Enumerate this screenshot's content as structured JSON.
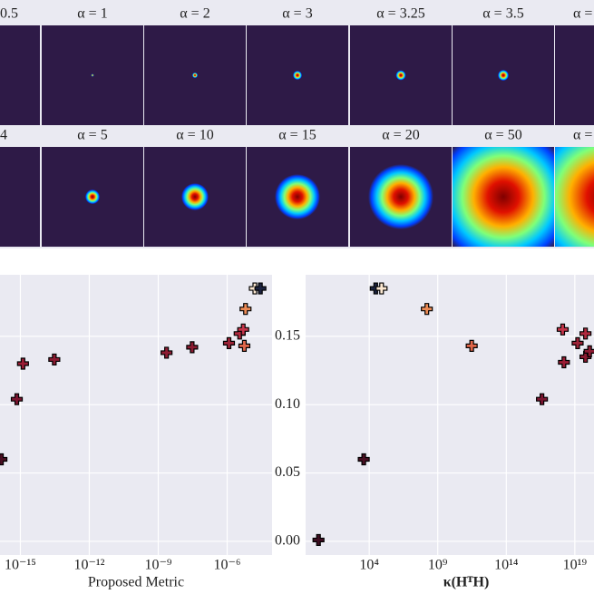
{
  "image_panels": {
    "rows": [
      [
        "0.5",
        "α = 1",
        "α = 2",
        "α = 3",
        "α = 3.25",
        "α = 3.5",
        "α ="
      ],
      [
        "4",
        "α = 5",
        "α = 10",
        "α = 15",
        "α = 20",
        "α = 50",
        "α ="
      ]
    ]
  },
  "chart_data": [
    {
      "type": "scatter",
      "xlabel": "Proposed Metric",
      "xlog": true,
      "grid": true,
      "ytick_labels": false,
      "xlim": [
        1.3e-16,
        9e-05
      ],
      "ylim": [
        -0.01,
        0.195
      ],
      "xticks": [
        {
          "value": 1e-15,
          "label": "10⁻¹⁵"
        },
        {
          "value": 1e-12,
          "label": "10⁻¹²"
        },
        {
          "value": 1e-09,
          "label": "10⁻⁹"
        },
        {
          "value": 1e-06,
          "label": "10⁻⁶"
        }
      ],
      "yticks": [
        0,
        0.05,
        0.1,
        0.15
      ],
      "x": [
        1.5e-16,
        7e-16,
        1.3e-15,
        3e-14,
        2.3e-09,
        3e-08,
        1.2e-06,
        3.5e-06,
        5e-06,
        5.6e-06,
        6.3e-06,
        1.6e-05,
        2.8e-05
      ],
      "values": [
        0.06,
        0.104,
        0.13,
        0.133,
        0.138,
        0.142,
        0.145,
        0.152,
        0.155,
        0.143,
        0.17,
        0.185,
        0.185
      ],
      "colors": [
        "#4a0f22",
        "#7a1530",
        "#9b1d35",
        "#8a1a30",
        "#8e1c33",
        "#8c1b32",
        "#9e2438",
        "#b02a3f",
        "#c4354a",
        "#e0664a",
        "#eb8a55",
        "#fbe7d0",
        "#1c2340"
      ]
    },
    {
      "type": "scatter",
      "xlabel": "κ(HᵀH)",
      "xlog": true,
      "grid": true,
      "ytick_labels": true,
      "xlim": [
        0.23,
        2.5e+20
      ],
      "ylim": [
        -0.01,
        0.195
      ],
      "xticks": [
        {
          "value": 10000.0,
          "label": "10⁴"
        },
        {
          "value": 1000000000.0,
          "label": "10⁹"
        },
        {
          "value": 100000000000000.0,
          "label": "10¹⁴"
        },
        {
          "value": 1e+19,
          "label": "10¹⁹"
        }
      ],
      "yticks": [
        {
          "value": 0,
          "label": "0.00"
        },
        {
          "value": 0.05,
          "label": "0.05"
        },
        {
          "value": 0.1,
          "label": "0.10"
        },
        {
          "value": 0.15,
          "label": "0.15"
        }
      ],
      "x": [
        2,
        4000.0,
        30000.0,
        80000.0,
        160000000.0,
        300000000000.0,
        4e+16,
        1.3e+18,
        1.6e+18,
        1.6e+19,
        6e+19,
        6e+19,
        1.2e+20
      ],
      "values": [
        0.001,
        0.06,
        0.185,
        0.185,
        0.17,
        0.143,
        0.104,
        0.155,
        0.131,
        0.145,
        0.152,
        0.135,
        0.139
      ],
      "colors": [
        "#3d0c20",
        "#4a0f22",
        "#1c2340",
        "#fbe7d0",
        "#eb8a55",
        "#e0664a",
        "#7a1530",
        "#c4354a",
        "#9b1d35",
        "#9e2438",
        "#b02a3f",
        "#8a1a30",
        "#8c1b32"
      ]
    }
  ]
}
